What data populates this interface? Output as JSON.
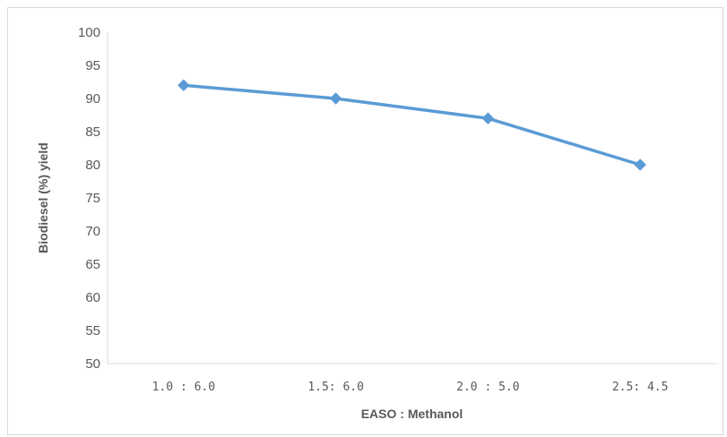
{
  "chart_data": {
    "type": "line",
    "title": "",
    "xlabel": "EASO : Methanol",
    "ylabel": "Biodiesel (%) yield",
    "categories": [
      "1.0 : 6.0",
      "1.5: 6.0",
      "2.0 : 5.0",
      "2.5: 4.5"
    ],
    "series": [
      {
        "values": [
          92,
          90,
          87,
          80
        ],
        "color": "#5b9bd5",
        "marker": "diamond"
      }
    ],
    "ylim": [
      50,
      100
    ],
    "yticks": [
      50,
      55,
      60,
      65,
      70,
      75,
      80,
      85,
      90,
      95,
      100
    ],
    "grid": false,
    "legend": "none"
  }
}
